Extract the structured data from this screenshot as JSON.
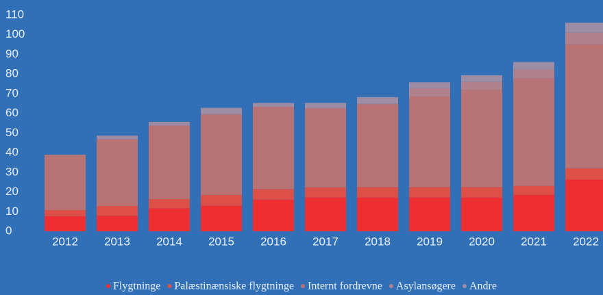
{
  "chart_data": {
    "type": "stacked_bar",
    "categories": [
      "2012",
      "2013",
      "2014",
      "2015",
      "2016",
      "2017",
      "2018",
      "2019",
      "2020",
      "2021",
      "2022"
    ],
    "series": [
      {
        "name": "Flygtninge",
        "color": "#ee2e30",
        "values": [
          7.7,
          7.9,
          11.7,
          13.0,
          16.1,
          17.2,
          17.2,
          17.2,
          17.2,
          18.6,
          26.3
        ]
      },
      {
        "name": "Palæstinænsiske flygtninge",
        "color": "#dc5048",
        "values": [
          3.1,
          5.0,
          4.7,
          5.5,
          5.4,
          5.2,
          5.3,
          5.3,
          5.3,
          4.5,
          5.8
        ]
      },
      {
        "name": "Internt fordrevne",
        "color": "#b87474",
        "values": [
          28.0,
          33.8,
          37.3,
          40.8,
          41.7,
          40.1,
          42.2,
          46.1,
          49.5,
          54.6,
          63.2
        ]
      },
      {
        "name": "Asylansøgere",
        "color": "#b0808c",
        "values": [
          0.2,
          0.3,
          0.3,
          0.5,
          0.3,
          0.3,
          0.3,
          4.2,
          4.0,
          4.6,
          5.7
        ]
      },
      {
        "name": "Andre",
        "color": "#9c8ca4",
        "values": [
          0,
          1.7,
          1.7,
          3.0,
          1.8,
          2.5,
          3.3,
          3.0,
          3.4,
          3.8,
          5.1
        ]
      }
    ],
    "ylim": [
      0,
      110
    ],
    "yticks": [
      0,
      10,
      20,
      30,
      40,
      50,
      60,
      70,
      80,
      90,
      100,
      110
    ],
    "legend": "bottom"
  }
}
